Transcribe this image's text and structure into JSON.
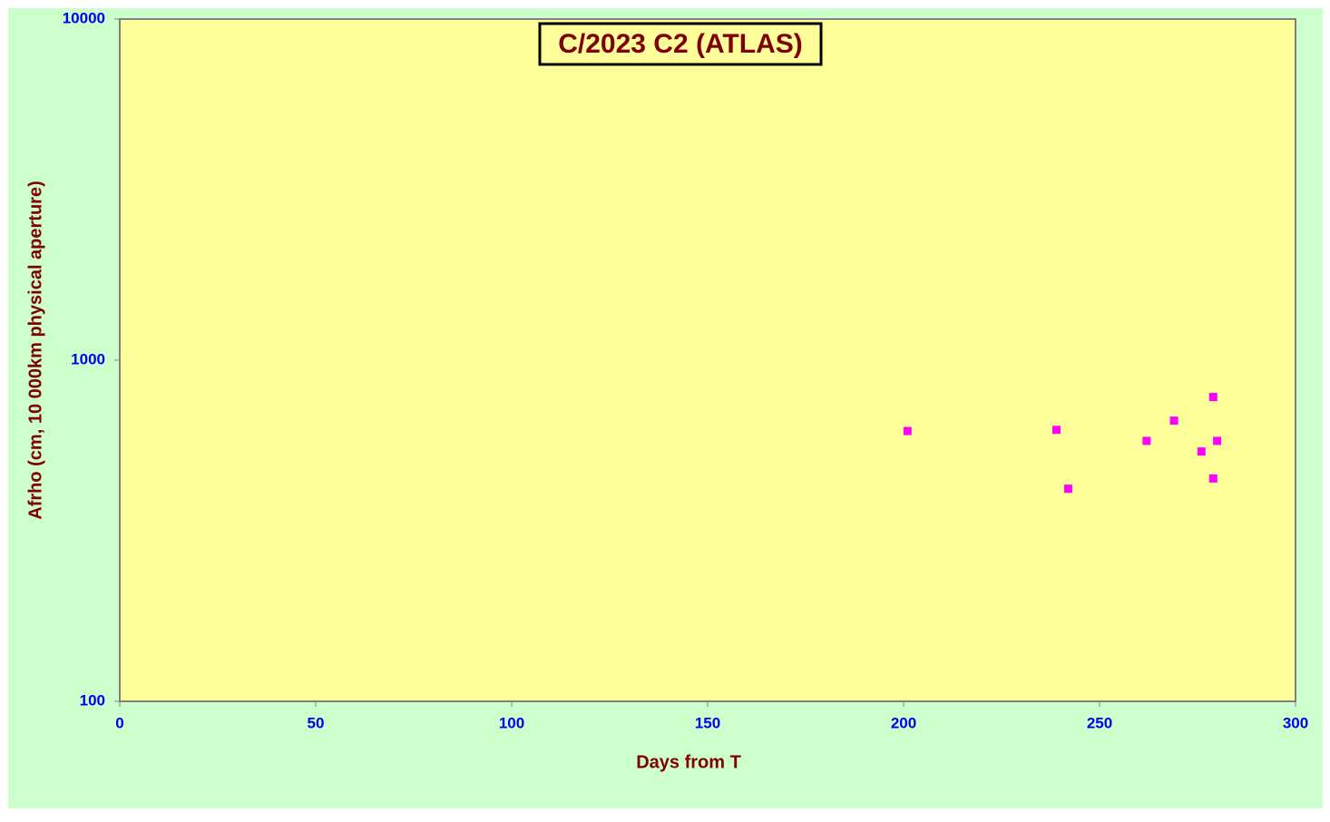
{
  "chart_data": {
    "type": "scatter",
    "title": "C/2023 C2 (ATLAS)",
    "x_label": "Days from  T",
    "y_label": "Afrho (cm, 10 000km physical  aperture)",
    "series": [
      {
        "color": "#ff00ff",
        "x": [
          201,
          239,
          242,
          262,
          269,
          276,
          279,
          279,
          280
        ],
        "values": [
          620,
          625,
          420,
          580,
          665,
          540,
          450,
          780,
          580
        ]
      }
    ],
    "xlim": [
      0,
      300
    ],
    "xticks": [
      0,
      50,
      100,
      150,
      200,
      250,
      300
    ],
    "ylim": [
      100,
      10000
    ],
    "yticks": [
      100,
      1000,
      10000
    ],
    "y_scale": "log",
    "grid": false
  }
}
